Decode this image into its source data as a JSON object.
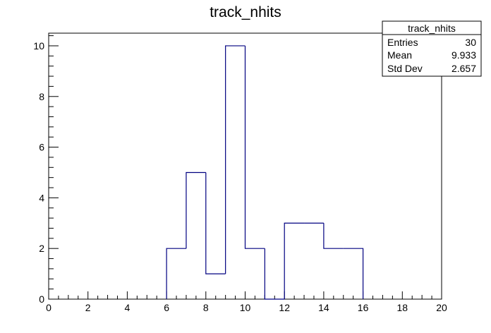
{
  "chart_data": {
    "type": "bar",
    "title": "track_nhits",
    "xlabel": "",
    "ylabel": "",
    "xlim": [
      0,
      20
    ],
    "ylim": [
      0,
      10.5
    ],
    "bin_width": 1,
    "bins": [
      {
        "x": 6,
        "value": 2
      },
      {
        "x": 7,
        "value": 5
      },
      {
        "x": 8,
        "value": 1
      },
      {
        "x": 9,
        "value": 10
      },
      {
        "x": 10,
        "value": 2
      },
      {
        "x": 11,
        "value": 0
      },
      {
        "x": 12,
        "value": 3
      },
      {
        "x": 13,
        "value": 3
      },
      {
        "x": 14,
        "value": 2
      },
      {
        "x": 15,
        "value": 2
      }
    ],
    "x_ticks": [
      0,
      2,
      4,
      6,
      8,
      10,
      12,
      14,
      16,
      18,
      20
    ],
    "y_ticks": [
      0,
      2,
      4,
      6,
      8,
      10
    ],
    "line_color": "#000080",
    "grid": false,
    "legend_placement": "top-right"
  },
  "stats_box": {
    "title": "track_nhits",
    "rows": [
      {
        "label": "Entries",
        "value": "30"
      },
      {
        "label": "Mean",
        "value": "9.933"
      },
      {
        "label": "Std Dev",
        "value": "2.657"
      }
    ]
  }
}
